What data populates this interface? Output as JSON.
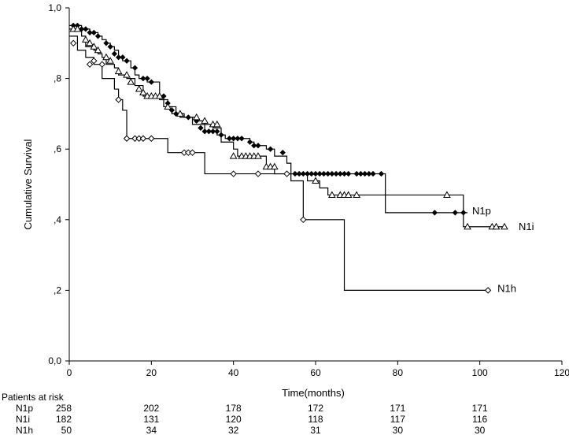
{
  "chart_data": {
    "type": "line",
    "chart_kind": "kaplan-meier step",
    "xlabel": "Time(months)",
    "ylabel": "Cumulative Survival",
    "xlim": [
      0,
      120
    ],
    "ylim": [
      0,
      1
    ],
    "xticks": [
      "0",
      "20",
      "40",
      "60",
      "80",
      "100",
      "120"
    ],
    "yticks": [
      "0,0",
      ",2",
      ",4",
      ",6",
      ",8",
      "1,0"
    ],
    "grid": false,
    "series": [
      {
        "name": "N1p",
        "marker": "filled-diamond",
        "color": "#000000",
        "steps": [
          [
            0,
            0.95
          ],
          [
            3,
            0.94
          ],
          [
            5,
            0.93
          ],
          [
            7,
            0.92
          ],
          [
            8,
            0.91
          ],
          [
            9,
            0.9
          ],
          [
            10,
            0.89
          ],
          [
            11,
            0.88
          ],
          [
            12,
            0.86
          ],
          [
            13,
            0.85
          ],
          [
            15,
            0.83
          ],
          [
            16,
            0.81
          ],
          [
            17,
            0.8
          ],
          [
            19,
            0.79
          ],
          [
            22,
            0.75
          ],
          [
            23,
            0.72
          ],
          [
            25,
            0.7
          ],
          [
            27,
            0.69
          ],
          [
            30,
            0.67
          ],
          [
            33,
            0.65
          ],
          [
            36,
            0.64
          ],
          [
            38,
            0.63
          ],
          [
            44,
            0.62
          ],
          [
            45,
            0.61
          ],
          [
            48,
            0.6
          ],
          [
            50,
            0.58
          ],
          [
            53,
            0.56
          ],
          [
            54,
            0.53
          ],
          [
            77,
            0.42
          ],
          [
            97,
            0.42
          ]
        ],
        "censored": [
          [
            1,
            0.95
          ],
          [
            2,
            0.95
          ],
          [
            3,
            0.94
          ],
          [
            4,
            0.94
          ],
          [
            5,
            0.93
          ],
          [
            6,
            0.93
          ],
          [
            7,
            0.92
          ],
          [
            9,
            0.9
          ],
          [
            10,
            0.89
          ],
          [
            11,
            0.87
          ],
          [
            12,
            0.86
          ],
          [
            13,
            0.86
          ],
          [
            14,
            0.85
          ],
          [
            16,
            0.83
          ],
          [
            18,
            0.8
          ],
          [
            19,
            0.8
          ],
          [
            20,
            0.79
          ],
          [
            23,
            0.75
          ],
          [
            24,
            0.73
          ],
          [
            25,
            0.71
          ],
          [
            26,
            0.7
          ],
          [
            27,
            0.7
          ],
          [
            29,
            0.69
          ],
          [
            31,
            0.68
          ],
          [
            32,
            0.66
          ],
          [
            33,
            0.65
          ],
          [
            34,
            0.65
          ],
          [
            35,
            0.65
          ],
          [
            36,
            0.65
          ],
          [
            37,
            0.64
          ],
          [
            39,
            0.63
          ],
          [
            40,
            0.63
          ],
          [
            41,
            0.63
          ],
          [
            42,
            0.63
          ],
          [
            44,
            0.62
          ],
          [
            45,
            0.61
          ],
          [
            46,
            0.61
          ],
          [
            49,
            0.6
          ],
          [
            52,
            0.59
          ],
          [
            55,
            0.53
          ],
          [
            56,
            0.53
          ],
          [
            57,
            0.53
          ],
          [
            58,
            0.53
          ],
          [
            59,
            0.53
          ],
          [
            60,
            0.53
          ],
          [
            61,
            0.53
          ],
          [
            62,
            0.53
          ],
          [
            63,
            0.53
          ],
          [
            64,
            0.53
          ],
          [
            65,
            0.53
          ],
          [
            66,
            0.53
          ],
          [
            67,
            0.53
          ],
          [
            68,
            0.53
          ],
          [
            70,
            0.53
          ],
          [
            71,
            0.53
          ],
          [
            72,
            0.53
          ],
          [
            73,
            0.53
          ],
          [
            74,
            0.53
          ],
          [
            76,
            0.53
          ],
          [
            89,
            0.42
          ],
          [
            94,
            0.42
          ],
          [
            96,
            0.42
          ]
        ]
      },
      {
        "name": "N1i",
        "marker": "open-triangle",
        "color": "#000000",
        "steps": [
          [
            0,
            0.94
          ],
          [
            3,
            0.92
          ],
          [
            4,
            0.89
          ],
          [
            6,
            0.88
          ],
          [
            7,
            0.87
          ],
          [
            8,
            0.86
          ],
          [
            9,
            0.84
          ],
          [
            11,
            0.83
          ],
          [
            12,
            0.81
          ],
          [
            14,
            0.8
          ],
          [
            16,
            0.78
          ],
          [
            18,
            0.75
          ],
          [
            22,
            0.74
          ],
          [
            24,
            0.72
          ],
          [
            26,
            0.7
          ],
          [
            28,
            0.69
          ],
          [
            31,
            0.68
          ],
          [
            33,
            0.67
          ],
          [
            35,
            0.66
          ],
          [
            37,
            0.62
          ],
          [
            40,
            0.6
          ],
          [
            41,
            0.58
          ],
          [
            48,
            0.55
          ],
          [
            50,
            0.53
          ],
          [
            58,
            0.51
          ],
          [
            61,
            0.49
          ],
          [
            63,
            0.47
          ],
          [
            96,
            0.38
          ],
          [
            106,
            0.38
          ]
        ],
        "censored": [
          [
            1,
            0.94
          ],
          [
            2,
            0.94
          ],
          [
            4,
            0.91
          ],
          [
            5,
            0.9
          ],
          [
            6,
            0.89
          ],
          [
            7,
            0.88
          ],
          [
            9,
            0.86
          ],
          [
            10,
            0.85
          ],
          [
            12,
            0.82
          ],
          [
            14,
            0.81
          ],
          [
            15,
            0.79
          ],
          [
            17,
            0.77
          ],
          [
            18,
            0.76
          ],
          [
            19,
            0.75
          ],
          [
            20,
            0.75
          ],
          [
            21,
            0.75
          ],
          [
            22,
            0.75
          ],
          [
            24,
            0.72
          ],
          [
            27,
            0.7
          ],
          [
            31,
            0.69
          ],
          [
            33,
            0.68
          ],
          [
            35,
            0.67
          ],
          [
            36,
            0.67
          ],
          [
            40,
            0.58
          ],
          [
            42,
            0.58
          ],
          [
            43,
            0.58
          ],
          [
            44,
            0.58
          ],
          [
            45,
            0.58
          ],
          [
            46,
            0.58
          ],
          [
            48,
            0.55
          ],
          [
            49,
            0.55
          ],
          [
            50,
            0.55
          ],
          [
            60,
            0.51
          ],
          [
            64,
            0.47
          ],
          [
            66,
            0.47
          ],
          [
            67,
            0.47
          ],
          [
            68,
            0.47
          ],
          [
            70,
            0.47
          ],
          [
            92,
            0.47
          ],
          [
            97,
            0.38
          ],
          [
            103,
            0.38
          ],
          [
            104,
            0.38
          ],
          [
            106,
            0.38
          ]
        ]
      },
      {
        "name": "N1h",
        "marker": "open-diamond",
        "color": "#000000",
        "steps": [
          [
            0,
            0.92
          ],
          [
            2,
            0.88
          ],
          [
            4,
            0.86
          ],
          [
            6,
            0.84
          ],
          [
            8,
            0.8
          ],
          [
            11,
            0.77
          ],
          [
            12,
            0.74
          ],
          [
            13,
            0.71
          ],
          [
            14,
            0.63
          ],
          [
            24,
            0.59
          ],
          [
            33,
            0.53
          ],
          [
            54,
            0.51
          ],
          [
            57,
            0.4
          ],
          [
            67,
            0.2
          ],
          [
            102,
            0.2
          ]
        ],
        "censored": [
          [
            1,
            0.9
          ],
          [
            5,
            0.84
          ],
          [
            6,
            0.85
          ],
          [
            8,
            0.84
          ],
          [
            12,
            0.74
          ],
          [
            14,
            0.63
          ],
          [
            16,
            0.63
          ],
          [
            17,
            0.63
          ],
          [
            18,
            0.63
          ],
          [
            20,
            0.63
          ],
          [
            28,
            0.59
          ],
          [
            29,
            0.59
          ],
          [
            30,
            0.59
          ],
          [
            40,
            0.53
          ],
          [
            46,
            0.53
          ],
          [
            53,
            0.53
          ],
          [
            57,
            0.4
          ],
          [
            102,
            0.2
          ]
        ]
      }
    ],
    "risk_table": {
      "title": "Patients at risk",
      "times": [
        0,
        20,
        40,
        60,
        80,
        100
      ],
      "rows": [
        {
          "name": "N1p",
          "values": [
            "258",
            "202",
            "178",
            "172",
            "171",
            "171"
          ]
        },
        {
          "name": "N1i",
          "values": [
            "182",
            "131",
            "120",
            "118",
            "117",
            "116"
          ]
        },
        {
          "name": "N1h",
          "values": [
            "50",
            "34",
            "32",
            "31",
            "30",
            "30"
          ]
        }
      ]
    }
  }
}
